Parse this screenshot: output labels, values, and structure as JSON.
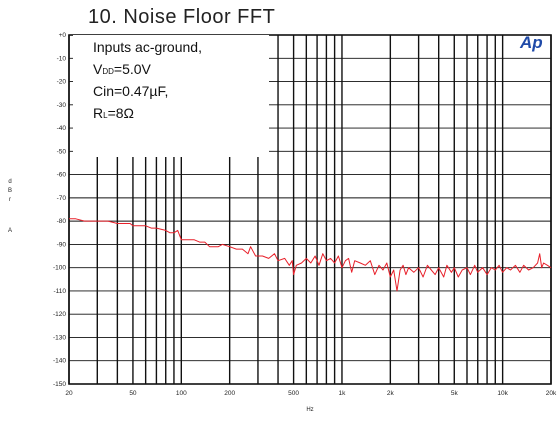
{
  "chart_data": {
    "type": "line",
    "title": "10. Noise Floor FFT",
    "ylabel_lines": [
      "d",
      "B",
      "r",
      "A"
    ],
    "xlabel": "Hz",
    "xscale": "log",
    "xlim": [
      20,
      20000
    ],
    "ylim": [
      -150,
      0
    ],
    "grid": true,
    "y_ticks": [
      "+0",
      "-10",
      "-20",
      "-30",
      "-40",
      "-50",
      "-60",
      "-70",
      "-80",
      "-90",
      "-100",
      "-110",
      "-120",
      "-130",
      "-140",
      "-150"
    ],
    "x_ticks": [
      {
        "value": 20,
        "label": "20"
      },
      {
        "value": 50,
        "label": "50"
      },
      {
        "value": 100,
        "label": "100"
      },
      {
        "value": 200,
        "label": "200"
      },
      {
        "value": 500,
        "label": "500"
      },
      {
        "value": 1000,
        "label": "1k"
      },
      {
        "value": 2000,
        "label": "2k"
      },
      {
        "value": 5000,
        "label": "5k"
      },
      {
        "value": 10000,
        "label": "10k"
      },
      {
        "value": 20000,
        "label": "20k"
      }
    ],
    "annotation": {
      "line1": "Inputs ac-ground,",
      "vdd_main": "V",
      "vdd_sub": "DD",
      "vdd_value": "=5.0V",
      "cin": "Cin=0.47µF,",
      "rl_main": "R",
      "rl_sub": "L",
      "rl_value": "=8Ω"
    },
    "logo": "Ap",
    "series": [
      {
        "color": "#e8202a",
        "points": [
          [
            20,
            -79
          ],
          [
            22,
            -79
          ],
          [
            25,
            -80
          ],
          [
            30,
            -80
          ],
          [
            35,
            -80
          ],
          [
            40,
            -81
          ],
          [
            48,
            -81
          ],
          [
            50,
            -82
          ],
          [
            55,
            -82
          ],
          [
            60,
            -82
          ],
          [
            65,
            -83
          ],
          [
            70,
            -83
          ],
          [
            80,
            -84
          ],
          [
            85,
            -85
          ],
          [
            90,
            -85
          ],
          [
            95,
            -84
          ],
          [
            100,
            -88
          ],
          [
            110,
            -88
          ],
          [
            120,
            -88
          ],
          [
            130,
            -89
          ],
          [
            140,
            -89
          ],
          [
            150,
            -91
          ],
          [
            170,
            -91
          ],
          [
            180,
            -90
          ],
          [
            200,
            -91
          ],
          [
            220,
            -92
          ],
          [
            240,
            -92
          ],
          [
            260,
            -94
          ],
          [
            270,
            -91
          ],
          [
            290,
            -95
          ],
          [
            320,
            -95
          ],
          [
            350,
            -96
          ],
          [
            380,
            -94
          ],
          [
            400,
            -97
          ],
          [
            440,
            -96
          ],
          [
            470,
            -99
          ],
          [
            490,
            -97
          ],
          [
            500,
            -103
          ],
          [
            520,
            -99
          ],
          [
            560,
            -98
          ],
          [
            600,
            -96
          ],
          [
            640,
            -98
          ],
          [
            680,
            -95
          ],
          [
            720,
            -99
          ],
          [
            760,
            -94
          ],
          [
            800,
            -97
          ],
          [
            850,
            -96
          ],
          [
            900,
            -98
          ],
          [
            950,
            -95
          ],
          [
            1000,
            -100
          ],
          [
            1050,
            -97
          ],
          [
            1100,
            -96
          ],
          [
            1150,
            -102
          ],
          [
            1200,
            -97
          ],
          [
            1300,
            -98
          ],
          [
            1400,
            -99
          ],
          [
            1500,
            -97
          ],
          [
            1600,
            -103
          ],
          [
            1700,
            -99
          ],
          [
            1800,
            -101
          ],
          [
            1900,
            -98
          ],
          [
            2000,
            -104
          ],
          [
            2100,
            -101
          ],
          [
            2200,
            -110
          ],
          [
            2300,
            -101
          ],
          [
            2400,
            -99
          ],
          [
            2500,
            -103
          ],
          [
            2600,
            -100
          ],
          [
            2800,
            -102
          ],
          [
            3000,
            -100
          ],
          [
            3200,
            -104
          ],
          [
            3400,
            -99
          ],
          [
            3600,
            -101
          ],
          [
            3800,
            -103
          ],
          [
            4000,
            -100
          ],
          [
            4300,
            -104
          ],
          [
            4500,
            -99
          ],
          [
            4800,
            -102
          ],
          [
            5000,
            -100
          ],
          [
            5300,
            -104
          ],
          [
            5600,
            -101
          ],
          [
            6000,
            -100
          ],
          [
            6300,
            -103
          ],
          [
            6700,
            -99
          ],
          [
            7000,
            -102
          ],
          [
            7500,
            -100
          ],
          [
            8000,
            -103
          ],
          [
            8500,
            -100
          ],
          [
            9000,
            -101
          ],
          [
            9500,
            -99
          ],
          [
            10000,
            -102
          ],
          [
            10600,
            -100
          ],
          [
            11200,
            -101
          ],
          [
            12000,
            -99
          ],
          [
            12800,
            -102
          ],
          [
            13500,
            -99
          ],
          [
            14500,
            -101
          ],
          [
            15500,
            -100
          ],
          [
            16500,
            -98
          ],
          [
            17000,
            -94
          ],
          [
            17500,
            -100
          ],
          [
            18000,
            -98
          ],
          [
            19000,
            -99
          ],
          [
            20000,
            -100
          ]
        ]
      }
    ]
  }
}
